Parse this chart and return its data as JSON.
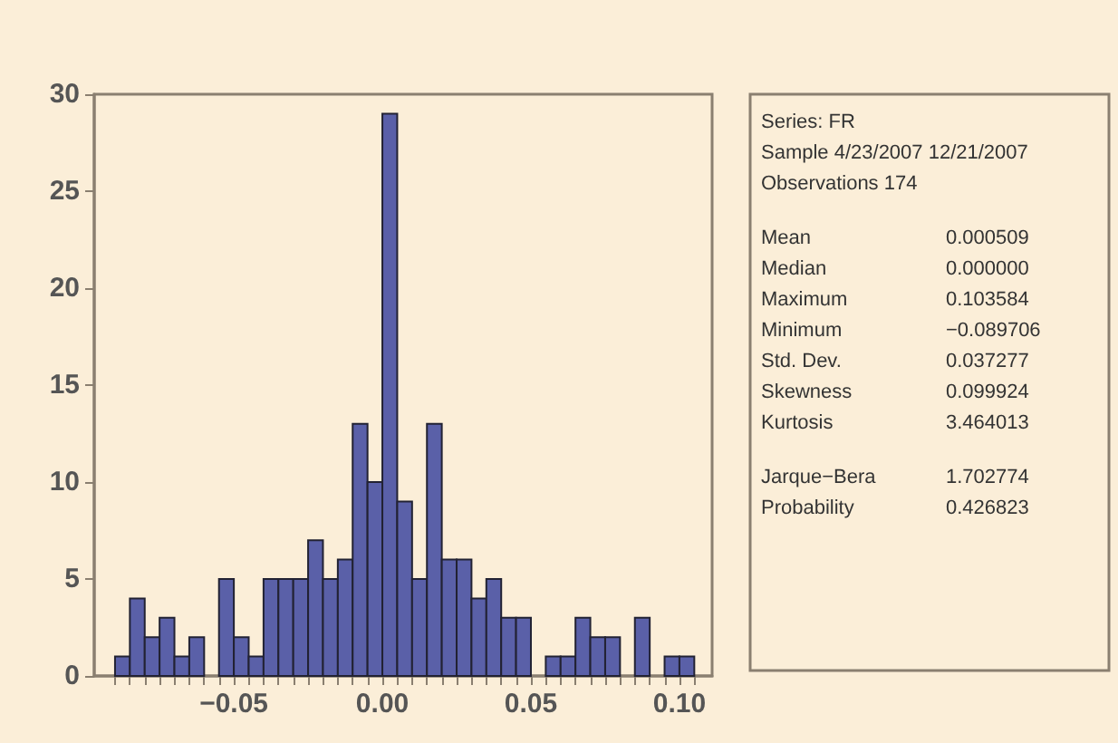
{
  "chart_data": {
    "type": "histogram",
    "bins": [
      -0.09,
      -0.085,
      -0.08,
      -0.075,
      -0.07,
      -0.065,
      -0.06,
      -0.055,
      -0.05,
      -0.045,
      -0.04,
      -0.035,
      -0.03,
      -0.025,
      -0.02,
      -0.015,
      -0.01,
      -0.005,
      0,
      0.005,
      0.01,
      0.015,
      0.02,
      0.025,
      0.03,
      0.035,
      0.04,
      0.045,
      0.05,
      0.055,
      0.06,
      0.065,
      0.07,
      0.075,
      0.08,
      0.085,
      0.09,
      0.095,
      0.1,
      0.105
    ],
    "values": [
      1,
      4,
      2,
      3,
      1,
      2,
      0,
      5,
      2,
      1,
      5,
      5,
      5,
      7,
      5,
      6,
      13,
      10,
      29,
      9,
      5,
      13,
      6,
      6,
      4,
      5,
      3,
      3,
      0,
      1,
      1,
      3,
      2,
      2,
      0,
      3,
      0,
      1,
      1
    ],
    "color": "#5a60a8",
    "xlim": [
      -0.097,
      0.111
    ],
    "ylim": [
      0,
      30
    ],
    "yticks": [
      0,
      5,
      10,
      15,
      20,
      25,
      30
    ],
    "xticks": [
      {
        "value": -0.09,
        "label": null
      },
      {
        "value": -0.085,
        "label": null
      },
      {
        "value": -0.08,
        "label": null
      },
      {
        "value": -0.075,
        "label": null
      },
      {
        "value": -0.07,
        "label": null
      },
      {
        "value": -0.065,
        "label": null
      },
      {
        "value": -0.06,
        "label": null
      },
      {
        "value": -0.055,
        "label": null
      },
      {
        "value": -0.05,
        "label": "−0.05"
      },
      {
        "value": -0.045,
        "label": null
      },
      {
        "value": -0.04,
        "label": null
      },
      {
        "value": -0.035,
        "label": null
      },
      {
        "value": -0.03,
        "label": null
      },
      {
        "value": -0.025,
        "label": null
      },
      {
        "value": -0.02,
        "label": null
      },
      {
        "value": -0.015,
        "label": null
      },
      {
        "value": -0.01,
        "label": null
      },
      {
        "value": -0.005,
        "label": null
      },
      {
        "value": 0,
        "label": "0.00"
      },
      {
        "value": 0.005,
        "label": null
      },
      {
        "value": 0.01,
        "label": null
      },
      {
        "value": 0.015,
        "label": null
      },
      {
        "value": 0.02,
        "label": null
      },
      {
        "value": 0.025,
        "label": null
      },
      {
        "value": 0.03,
        "label": null
      },
      {
        "value": 0.035,
        "label": null
      },
      {
        "value": 0.04,
        "label": null
      },
      {
        "value": 0.045,
        "label": null
      },
      {
        "value": 0.05,
        "label": "0.05"
      },
      {
        "value": 0.055,
        "label": null
      },
      {
        "value": 0.06,
        "label": null
      },
      {
        "value": 0.065,
        "label": null
      },
      {
        "value": 0.07,
        "label": null
      },
      {
        "value": 0.075,
        "label": null
      },
      {
        "value": 0.08,
        "label": null
      },
      {
        "value": 0.085,
        "label": null
      },
      {
        "value": 0.09,
        "label": null
      },
      {
        "value": 0.095,
        "label": null
      },
      {
        "value": 0.1,
        "label": "0.10"
      },
      {
        "value": 0.105,
        "label": null
      }
    ],
    "grid": false,
    "annotations": [
      "Series: FR",
      "Sample 4/23/2007 12/21/2007",
      "Observations 174",
      "Mean\t0.000509",
      "Median\t0.000000",
      "Maximum\t0.103584",
      "Minimum\t−0.089706",
      "Std. Dev.\t0.037277",
      "Skewness\t0.099924",
      "Kurtosis\t3.464013",
      "Jarque−Bera\t1.702774",
      "Probability\t0.426823"
    ]
  }
}
